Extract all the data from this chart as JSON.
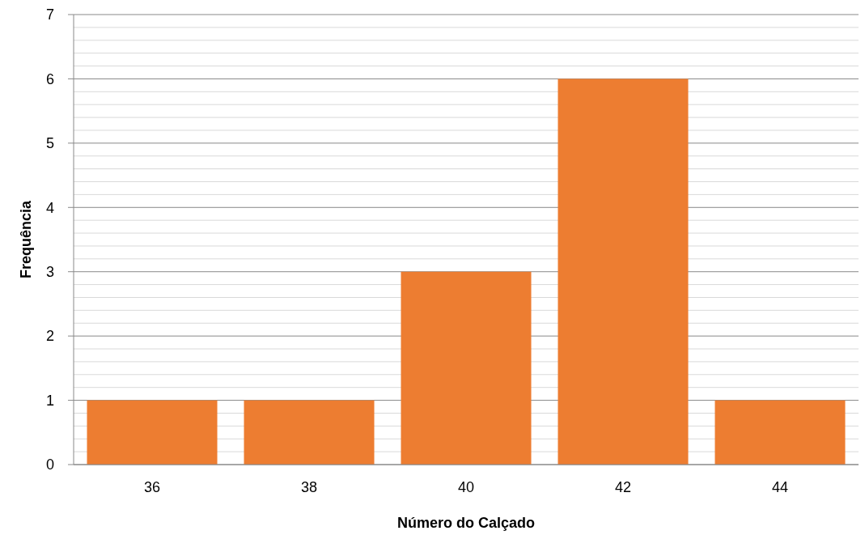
{
  "chart_data": {
    "type": "bar",
    "xlabel": "Número do Calçado",
    "ylabel": "Frequência",
    "categories": [
      "36",
      "38",
      "40",
      "42",
      "44"
    ],
    "values": [
      1,
      1,
      3,
      6,
      1
    ],
    "color": "#ed7d31",
    "ylim": [
      0,
      7
    ],
    "yticks": [
      0,
      {
        "value": 0.2,
        "label": null
      },
      {
        "value": 0.4,
        "label": null
      },
      {
        "value": 0.6,
        "label": null
      },
      {
        "value": 0.8,
        "label": null
      },
      1,
      {
        "value": 1.2,
        "label": null
      },
      {
        "value": 1.4,
        "label": null
      },
      {
        "value": 1.6,
        "label": null
      },
      {
        "value": 1.8,
        "label": null
      },
      2,
      {
        "value": 2.2,
        "label": null
      },
      {
        "value": 2.4,
        "label": null
      },
      {
        "value": 2.6,
        "label": null
      },
      {
        "value": 2.8,
        "label": null
      },
      3,
      {
        "value": 3.2,
        "label": null
      },
      {
        "value": 3.4,
        "label": null
      },
      {
        "value": 3.6,
        "label": null
      },
      {
        "value": 3.8,
        "label": null
      },
      4,
      {
        "value": 4.2,
        "label": null
      },
      {
        "value": 4.4,
        "label": null
      },
      {
        "value": 4.6,
        "label": null
      },
      {
        "value": 4.8,
        "label": null
      },
      5,
      {
        "value": 5.2,
        "label": null
      },
      {
        "value": 5.4,
        "label": null
      },
      {
        "value": 5.6,
        "label": null
      },
      {
        "value": 5.8,
        "label": null
      },
      6,
      {
        "value": 6.2,
        "label": null
      },
      {
        "value": 6.4,
        "label": null
      },
      {
        "value": 6.6,
        "label": null
      },
      {
        "value": 6.8,
        "label": null
      },
      7
    ],
    "grid": "y"
  }
}
